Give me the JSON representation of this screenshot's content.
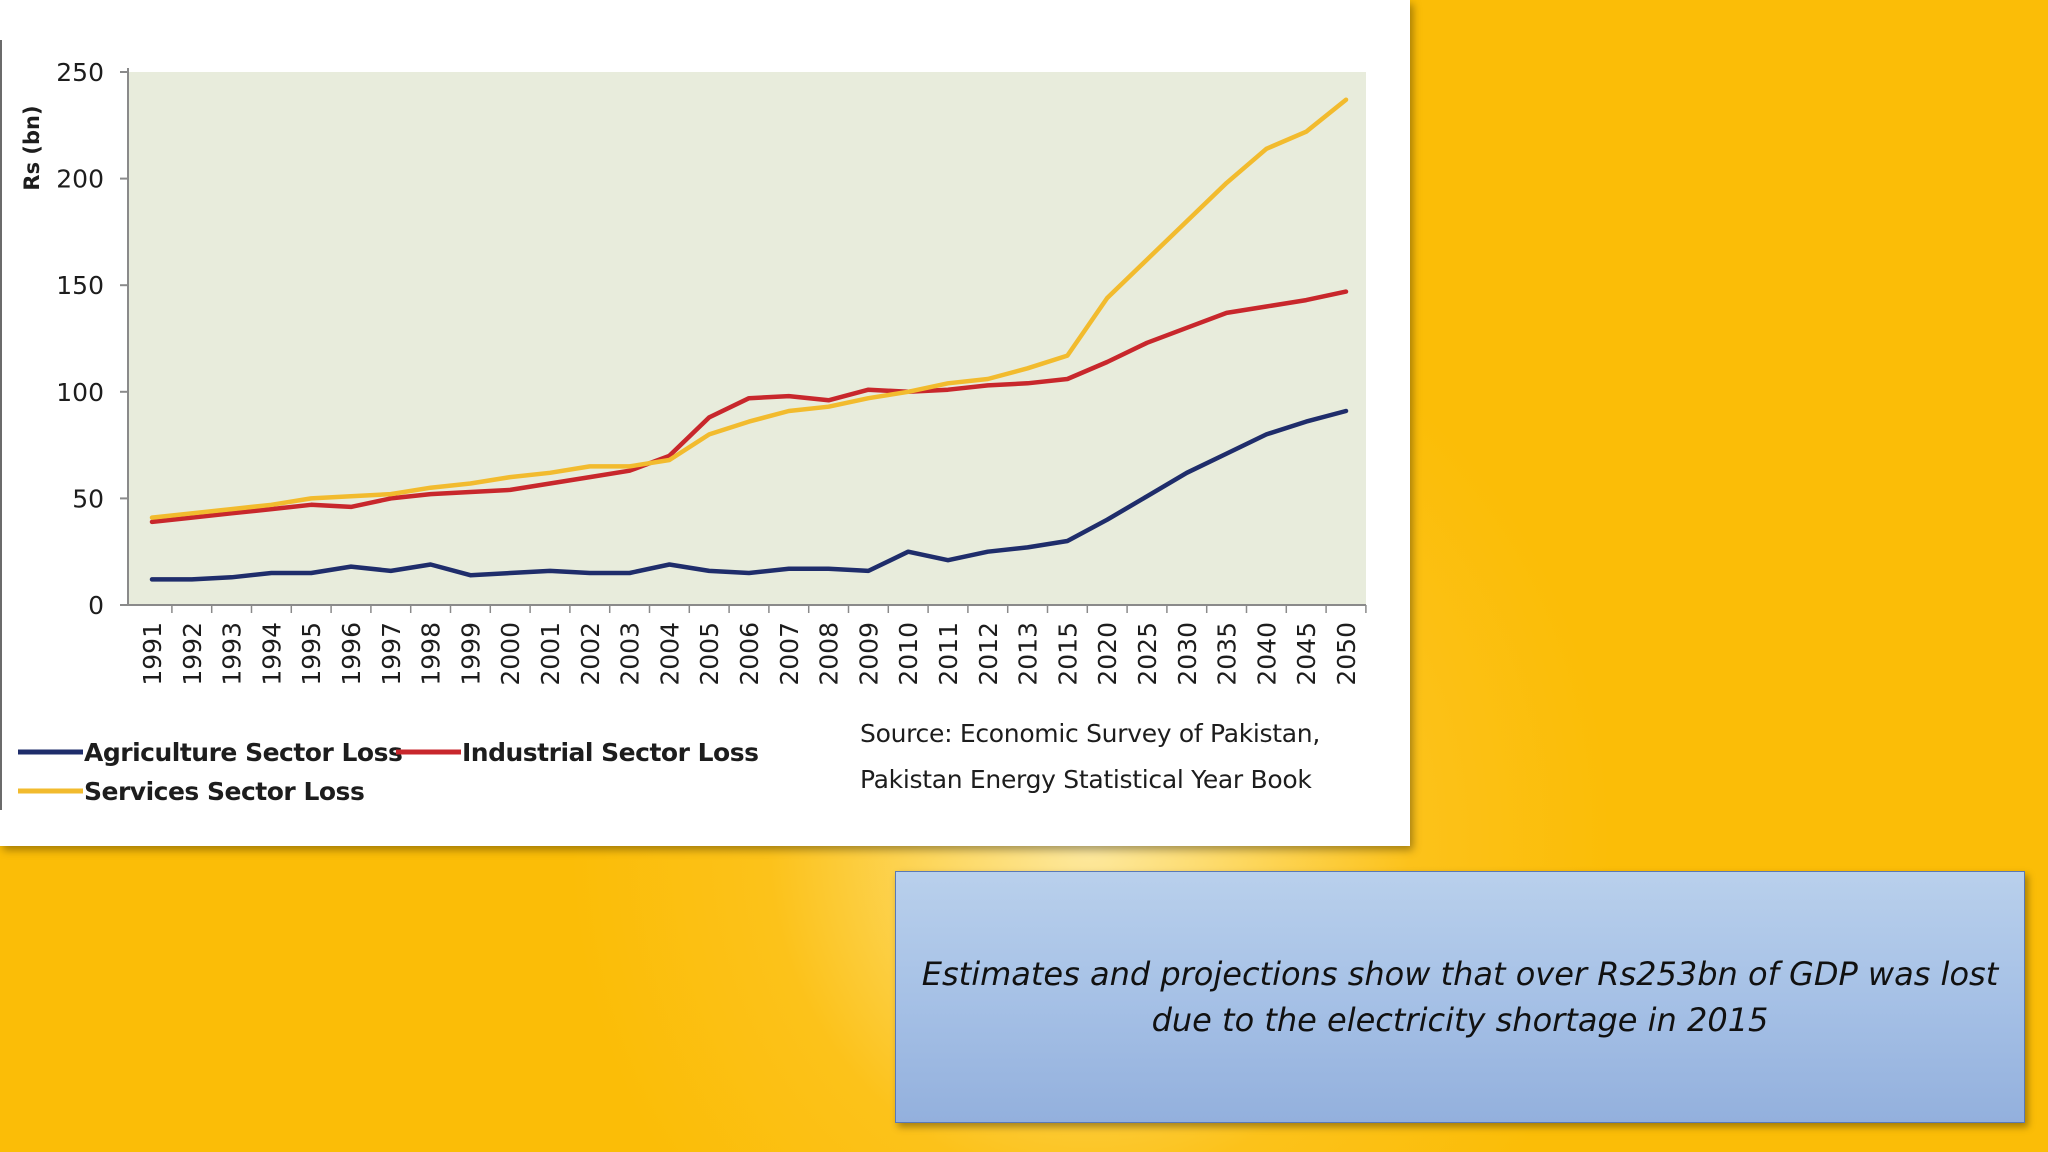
{
  "caption": {
    "text": "Estimates and projections show that over Rs253bn of GDP was lost due to the electricity shortage in 2015"
  },
  "source": {
    "line1": "Source: Economic Survey of Pakistan,",
    "line2": "Pakistan Energy Statistical Year Book"
  },
  "colors": {
    "slide_background": "#fbbd07",
    "plot_background": "#e8ecdc",
    "agriculture": "#1f2d6b",
    "industrial": "#c8272c",
    "services": "#f2bb2e",
    "caption_box": "#a6c1e6"
  },
  "chart_data": {
    "type": "line",
    "title": "",
    "xlabel": "",
    "ylabel": "Rs (bn)",
    "ylim": [
      0,
      250
    ],
    "yticks": [
      0,
      50,
      100,
      150,
      200,
      250
    ],
    "grid": false,
    "legend_position": "bottom-left",
    "categories": [
      "1991",
      "1992",
      "1993",
      "1994",
      "1995",
      "1996",
      "1997",
      "1998",
      "1999",
      "2000",
      "2001",
      "2002",
      "2003",
      "2004",
      "2005",
      "2006",
      "2007",
      "2008",
      "2009",
      "2010",
      "2011",
      "2012",
      "2013",
      "2015",
      "2020",
      "2025",
      "2030",
      "2035",
      "2040",
      "2045",
      "2050"
    ],
    "series": [
      {
        "name": "Agriculture Sector Loss",
        "color": "#1f2d6b",
        "values": [
          12,
          12,
          13,
          15,
          15,
          18,
          16,
          19,
          14,
          15,
          16,
          15,
          15,
          19,
          16,
          15,
          17,
          17,
          16,
          25,
          21,
          25,
          27,
          30,
          40,
          51,
          62,
          71,
          80,
          86,
          91
        ]
      },
      {
        "name": "Industrial Sector Loss",
        "color": "#c8272c",
        "values": [
          39,
          41,
          43,
          45,
          47,
          46,
          50,
          52,
          53,
          54,
          57,
          60,
          63,
          70,
          88,
          97,
          98,
          96,
          101,
          100,
          101,
          103,
          104,
          106,
          114,
          123,
          130,
          137,
          140,
          143,
          147
        ]
      },
      {
        "name": "Services Sector Loss",
        "color": "#f2bb2e",
        "values": [
          41,
          43,
          45,
          47,
          50,
          51,
          52,
          55,
          57,
          60,
          62,
          65,
          65,
          68,
          80,
          86,
          91,
          93,
          97,
          100,
          104,
          106,
          111,
          117,
          144,
          162,
          180,
          198,
          214,
          222,
          237
        ]
      }
    ]
  }
}
